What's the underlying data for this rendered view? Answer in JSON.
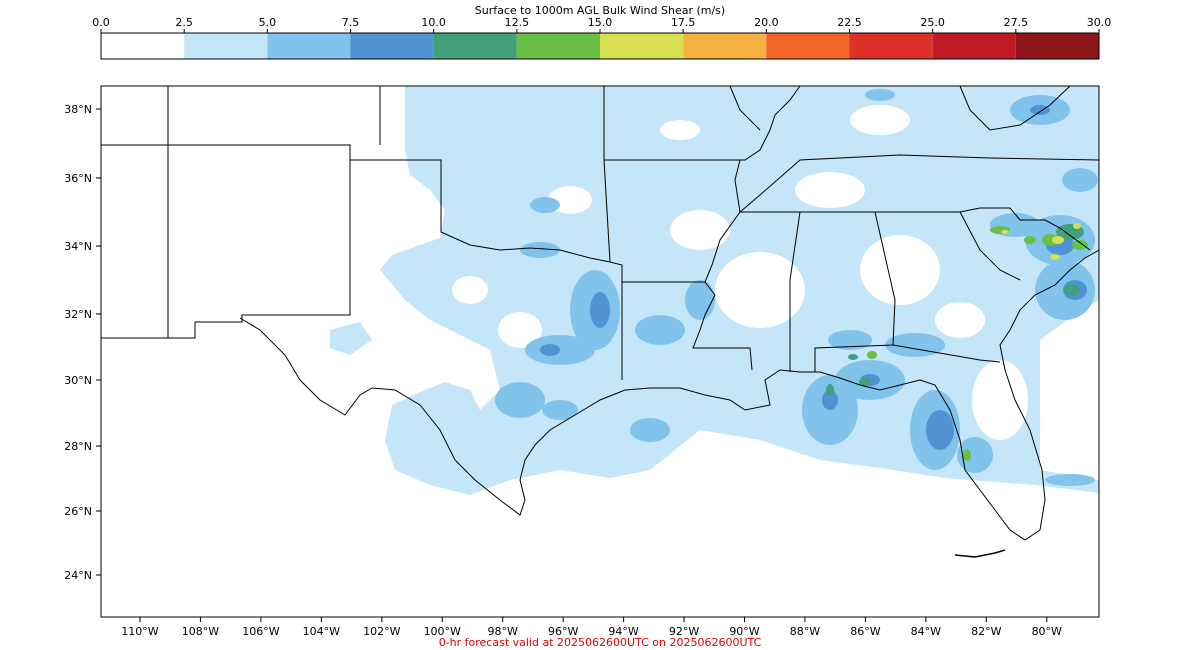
{
  "colorbar": {
    "title": "Surface to 1000m AGL Bulk Wind Shear (m/s)",
    "ticks": [
      "0.0",
      "2.5",
      "5.0",
      "7.5",
      "10.0",
      "12.5",
      "15.0",
      "17.5",
      "20.0",
      "22.5",
      "25.0",
      "27.5",
      "30.0"
    ],
    "colors": [
      "#ffffff",
      "#c4e6f8",
      "#82c3ec",
      "#4f93d2",
      "#43a07c",
      "#6abf45",
      "#d6e052",
      "#f7b042",
      "#f26528",
      "#dd3127",
      "#be1b24",
      "#8e161b"
    ]
  },
  "map": {
    "region": "Southern United States / Gulf of Mexico",
    "lat_labels": [
      "38°N",
      "36°N",
      "34°N",
      "32°N",
      "30°N",
      "28°N",
      "26°N",
      "24°N"
    ],
    "lon_labels": [
      "110°W",
      "108°W",
      "106°W",
      "104°W",
      "102°W",
      "100°W",
      "98°W",
      "96°W",
      "94°W",
      "92°W",
      "90°W",
      "88°W",
      "86°W",
      "84°W",
      "82°W",
      "80°W"
    ],
    "dominant_shear_range": "2.5–7.5 m/s",
    "max_shear_areas": [
      "South Carolina coast",
      "Florida Panhandle",
      "SW Florida"
    ]
  },
  "footer": "0-hr forecast valid at 2025062600UTC on 2025062600UTC"
}
